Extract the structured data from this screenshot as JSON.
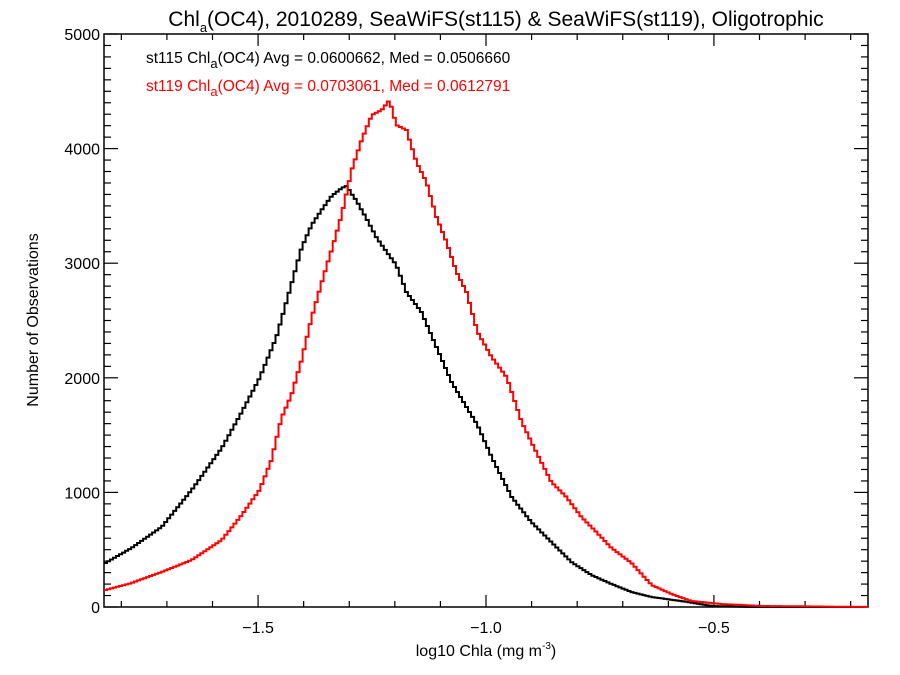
{
  "chart_data": {
    "type": "line",
    "style": "histogram-step",
    "title": {
      "prefix": "Chl",
      "subscript": "a",
      "suffix": "(OC4), 2010289, SeaWiFS(st115) & SeaWiFS(st119), Oligotrophic"
    },
    "xlabel": {
      "text": "log10 Chla (mg m",
      "superscript": "-3",
      "close": ")"
    },
    "ylabel": "Number of Observations",
    "xlim": [
      -1.838,
      -0.162
    ],
    "ylim": [
      0,
      5000
    ],
    "x_major_ticks": [
      -1.5,
      -1.0,
      -0.5
    ],
    "x_tick_labels": [
      "−1.5",
      "−1.0",
      "−0.5"
    ],
    "x_minor_step": 0.1,
    "y_major_ticks": [
      0,
      1000,
      2000,
      3000,
      4000,
      5000
    ],
    "y_tick_labels": [
      "0",
      "1000",
      "2000",
      "3000",
      "4000",
      "5000"
    ],
    "y_minor_step": 100,
    "grid": false,
    "legend_position": "top-left",
    "series": [
      {
        "name": "st115",
        "color": "#000000",
        "legend": {
          "prefix": "st115 Chl",
          "subscript": "a",
          "suffix": "(OC4) Avg = 0.0600662, Med = 0.0506660"
        },
        "avg": 0.0600662,
        "median": 0.050666,
        "x": [
          -1.838,
          -1.781,
          -1.715,
          -1.649,
          -1.583,
          -1.539,
          -1.5,
          -1.463,
          -1.43,
          -1.408,
          -1.386,
          -1.364,
          -1.342,
          -1.32,
          -1.309,
          -1.298,
          -1.287,
          -1.265,
          -1.243,
          -1.221,
          -1.2,
          -1.178,
          -1.145,
          -1.112,
          -1.079,
          -1.046,
          -1.022,
          -0.991,
          -0.947,
          -0.904,
          -0.86,
          -0.816,
          -0.772,
          -0.728,
          -0.684,
          -0.64,
          -0.575,
          -0.509,
          -0.421,
          -0.162
        ],
        "y": [
          384,
          515,
          698,
          1021,
          1387,
          1702,
          1998,
          2356,
          2818,
          3133,
          3333,
          3464,
          3586,
          3656,
          3674,
          3604,
          3543,
          3386,
          3220,
          3098,
          2984,
          2749,
          2574,
          2269,
          1963,
          1745,
          1588,
          1309,
          960,
          742,
          567,
          393,
          279,
          201,
          131,
          87,
          52,
          9,
          0,
          0
        ]
      },
      {
        "name": "st119",
        "color": "#ff0000",
        "legend": {
          "prefix": "st119 Chl",
          "subscript": "a",
          "suffix": "(OC4) Avg = 0.0703061, Med = 0.0612791"
        },
        "avg": 0.0703061,
        "median": 0.0612791,
        "x": [
          -1.838,
          -1.781,
          -1.715,
          -1.649,
          -1.583,
          -1.539,
          -1.5,
          -1.474,
          -1.452,
          -1.43,
          -1.408,
          -1.386,
          -1.364,
          -1.342,
          -1.32,
          -1.298,
          -1.276,
          -1.254,
          -1.232,
          -1.215,
          -1.2,
          -1.178,
          -1.156,
          -1.134,
          -1.112,
          -1.09,
          -1.068,
          -1.046,
          -1.022,
          -0.991,
          -0.958,
          -0.925,
          -0.893,
          -0.86,
          -0.827,
          -0.794,
          -0.761,
          -0.728,
          -0.684,
          -0.64,
          -0.596,
          -0.553,
          -0.487,
          -0.399,
          -0.162
        ],
        "y": [
          148,
          209,
          305,
          410,
          585,
          803,
          1021,
          1283,
          1649,
          1850,
          2155,
          2522,
          2827,
          3115,
          3421,
          3813,
          4075,
          4293,
          4337,
          4424,
          4206,
          4162,
          3883,
          3709,
          3403,
          3185,
          2923,
          2749,
          2400,
          2182,
          2007,
          1614,
          1353,
          1091,
          960,
          785,
          654,
          515,
          384,
          192,
          113,
          52,
          26,
          9,
          0
        ]
      }
    ]
  }
}
